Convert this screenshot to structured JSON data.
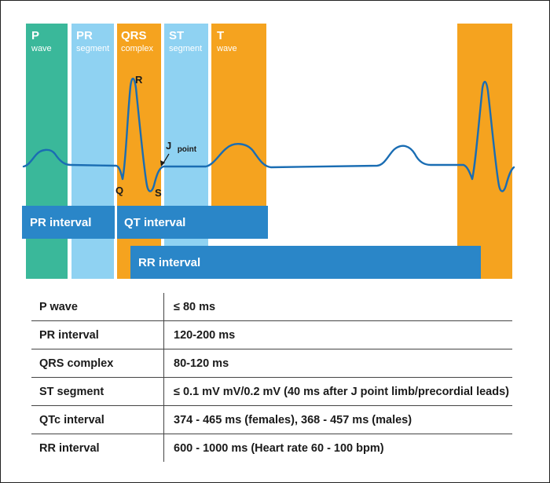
{
  "colors": {
    "p_wave": "#3ab89a",
    "pr_segment": "#8fd2f2",
    "qrs_complex": "#f5a31f",
    "st_segment": "#8fd2f2",
    "t_wave": "#f5a31f",
    "interval_bar": "#2a86c8",
    "trace": "#1a6db3"
  },
  "bands": {
    "p": {
      "title": "P",
      "subtitle": "wave"
    },
    "pr": {
      "title": "PR",
      "subtitle": "segment"
    },
    "qrs": {
      "title": "QRS",
      "subtitle": "complex"
    },
    "st": {
      "title": "ST",
      "subtitle": "segment"
    },
    "t": {
      "title": "T",
      "subtitle": "wave"
    }
  },
  "points": {
    "r": "R",
    "q": "Q",
    "s": "S",
    "j_main": "J",
    "j_sub": "point"
  },
  "intervals": {
    "pr": "PR interval",
    "qt": "QT interval",
    "rr": "RR interval"
  },
  "table": {
    "rows": [
      {
        "label": "P wave",
        "value": "≤ 80 ms"
      },
      {
        "label": "PR interval",
        "value": "120-200 ms"
      },
      {
        "label": "QRS complex",
        "value": "80-120 ms"
      },
      {
        "label": "ST segment",
        "value": "≤ 0.1 mV mV/0.2 mV (40 ms after J point limb/precordial leads)"
      },
      {
        "label": "QTc interval",
        "value": "374 - 465 ms (females), 368 - 457 ms (males)"
      },
      {
        "label": "RR interval",
        "value": "600 - 1000 ms (Heart rate 60 - 100 bpm)"
      }
    ]
  }
}
